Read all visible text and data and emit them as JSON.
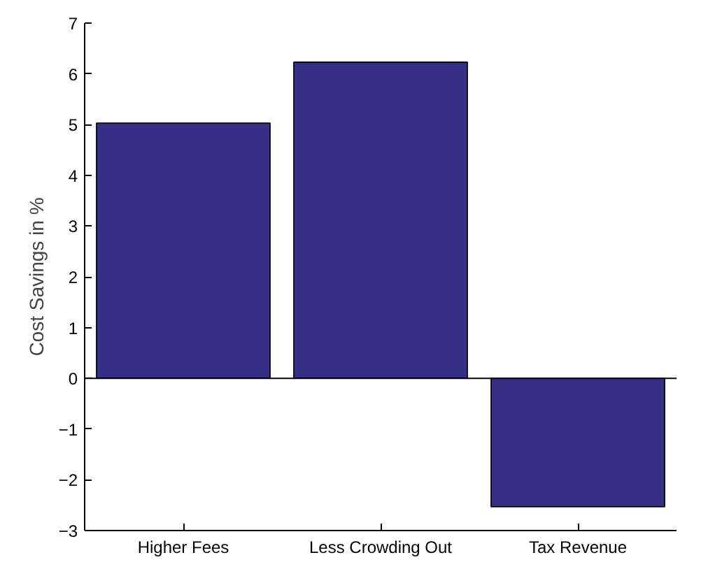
{
  "chart_data": {
    "type": "bar",
    "ylabel": "Cost Savings in %",
    "categories": [
      "Higher Fees",
      "Less Crowding Out",
      "Tax Revenue"
    ],
    "values": [
      5.03,
      6.23,
      -2.53
    ],
    "color": "#352f85",
    "ylim": [
      -3,
      7
    ],
    "yticks": [
      -3,
      -2,
      -1,
      0,
      1,
      2,
      3,
      4,
      5,
      6,
      7
    ],
    "grid": false,
    "ref_lines": [
      {
        "axis": "y",
        "value": 0,
        "label": null,
        "color": "#000000"
      }
    ]
  }
}
